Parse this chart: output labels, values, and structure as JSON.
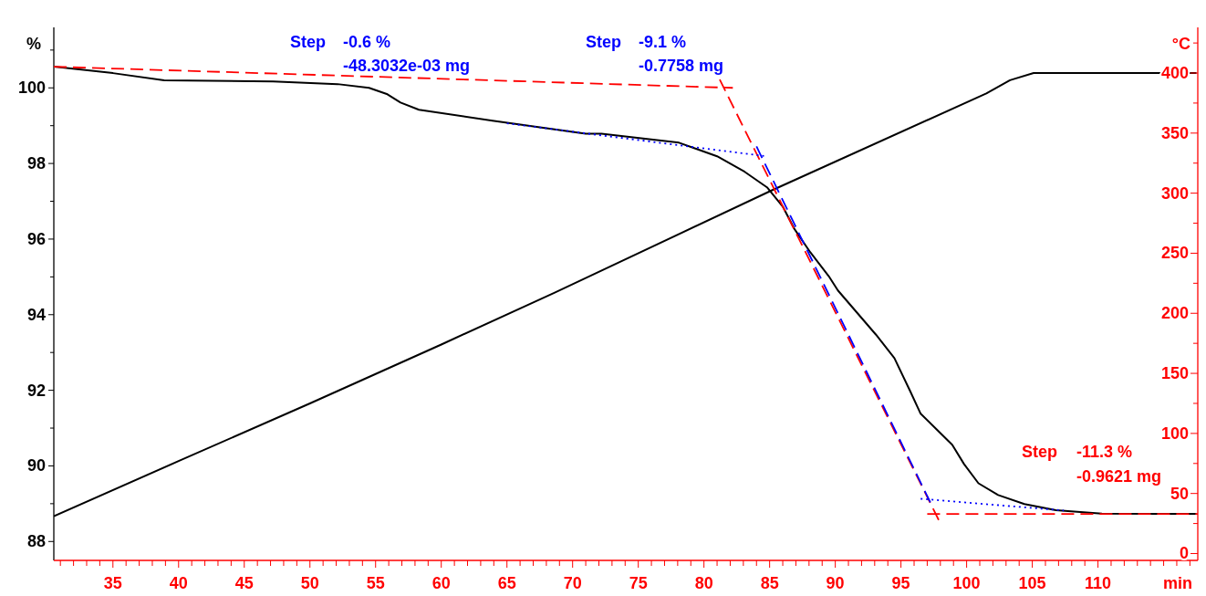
{
  "chart_data": {
    "type": "line",
    "ylabel": "%",
    "y2label": "°C",
    "xlabel": "min",
    "xlim": [
      30.5,
      117.6
    ],
    "ylim": [
      87.5,
      101.6
    ],
    "y2lim": [
      -5.7,
      438
    ],
    "xticks": [
      {
        "value": 31,
        "label": null
      },
      {
        "value": 32,
        "label": null
      },
      {
        "value": 33,
        "label": null
      },
      {
        "value": 34,
        "label": null
      },
      35,
      {
        "value": 36,
        "label": null
      },
      {
        "value": 37,
        "label": null
      },
      {
        "value": 38,
        "label": null
      },
      {
        "value": 39,
        "label": null
      },
      40,
      {
        "value": 41,
        "label": null
      },
      {
        "value": 42,
        "label": null
      },
      {
        "value": 43,
        "label": null
      },
      {
        "value": 44,
        "label": null
      },
      45,
      {
        "value": 46,
        "label": null
      },
      {
        "value": 47,
        "label": null
      },
      {
        "value": 48,
        "label": null
      },
      {
        "value": 49,
        "label": null
      },
      50,
      {
        "value": 51,
        "label": null
      },
      {
        "value": 52,
        "label": null
      },
      {
        "value": 53,
        "label": null
      },
      {
        "value": 54,
        "label": null
      },
      55,
      {
        "value": 56,
        "label": null
      },
      {
        "value": 57,
        "label": null
      },
      {
        "value": 58,
        "label": null
      },
      {
        "value": 59,
        "label": null
      },
      60,
      {
        "value": 61,
        "label": null
      },
      {
        "value": 62,
        "label": null
      },
      {
        "value": 63,
        "label": null
      },
      {
        "value": 64,
        "label": null
      },
      65,
      {
        "value": 66,
        "label": null
      },
      {
        "value": 67,
        "label": null
      },
      {
        "value": 68,
        "label": null
      },
      {
        "value": 69,
        "label": null
      },
      70,
      {
        "value": 71,
        "label": null
      },
      {
        "value": 72,
        "label": null
      },
      {
        "value": 73,
        "label": null
      },
      {
        "value": 74,
        "label": null
      },
      75,
      {
        "value": 76,
        "label": null
      },
      {
        "value": 77,
        "label": null
      },
      {
        "value": 78,
        "label": null
      },
      {
        "value": 79,
        "label": null
      },
      80,
      {
        "value": 81,
        "label": null
      },
      {
        "value": 82,
        "label": null
      },
      {
        "value": 83,
        "label": null
      },
      {
        "value": 84,
        "label": null
      },
      85,
      {
        "value": 86,
        "label": null
      },
      {
        "value": 87,
        "label": null
      },
      {
        "value": 88,
        "label": null
      },
      {
        "value": 89,
        "label": null
      },
      90,
      {
        "value": 91,
        "label": null
      },
      {
        "value": 92,
        "label": null
      },
      {
        "value": 93,
        "label": null
      },
      {
        "value": 94,
        "label": null
      },
      95,
      {
        "value": 96,
        "label": null
      },
      {
        "value": 97,
        "label": null
      },
      {
        "value": 98,
        "label": null
      },
      {
        "value": 99,
        "label": null
      },
      100,
      {
        "value": 101,
        "label": null
      },
      {
        "value": 102,
        "label": null
      },
      {
        "value": 103,
        "label": null
      },
      {
        "value": 104,
        "label": null
      },
      105,
      {
        "value": 106,
        "label": null
      },
      {
        "value": 107,
        "label": null
      },
      {
        "value": 108,
        "label": null
      },
      {
        "value": 109,
        "label": null
      },
      110,
      {
        "value": 111,
        "label": null
      },
      {
        "value": 112,
        "label": null
      },
      {
        "value": 113,
        "label": null
      },
      {
        "value": 114,
        "label": null
      },
      {
        "value": 115,
        "label": null
      },
      {
        "value": 116,
        "label": null
      },
      {
        "value": 117,
        "label": null
      }
    ],
    "yticks": [
      88,
      {
        "value": 89,
        "label": null
      },
      90,
      {
        "value": 91,
        "label": null
      },
      92,
      {
        "value": 93,
        "label": null
      },
      94,
      {
        "value": 95,
        "label": null
      },
      96,
      {
        "value": 97,
        "label": null
      },
      98,
      {
        "value": 99,
        "label": null
      },
      100,
      {
        "value": 101,
        "label": null
      }
    ],
    "y2ticks": [
      0,
      {
        "value": 25,
        "label": null
      },
      50,
      {
        "value": 75,
        "label": null
      },
      100,
      {
        "value": 125,
        "label": null
      },
      150,
      {
        "value": 175,
        "label": null
      },
      200,
      {
        "value": 225,
        "label": null
      },
      250,
      {
        "value": 275,
        "label": null
      },
      300,
      {
        "value": 325,
        "label": null
      },
      350,
      {
        "value": 375,
        "label": null
      },
      400,
      {
        "value": 425,
        "label": null
      }
    ],
    "grid": false,
    "series": [
      {
        "color": "#000000",
        "line_style": "solid",
        "x": [
          30.5,
          35,
          38.9,
          47.2,
          52.1,
          54.5,
          55.9,
          56.9,
          58.3,
          63.9,
          71.0,
          72.2,
          78.1,
          81.0,
          83.1,
          84.8,
          86.0,
          86.9,
          88.1,
          89.5,
          90.2,
          93.1,
          94.5,
          95.7,
          96.5,
          97.7,
          98.9,
          99.8,
          100.9,
          102.4,
          104.4,
          106.8,
          110.3,
          117.5
        ],
        "values": [
          100.56,
          100.39,
          100.2,
          100.17,
          100.1,
          100.0,
          99.83,
          99.61,
          99.42,
          99.13,
          98.79,
          98.79,
          98.55,
          98.19,
          97.78,
          97.37,
          96.86,
          96.26,
          95.65,
          95.02,
          94.64,
          93.47,
          92.85,
          91.98,
          91.38,
          90.97,
          90.56,
          90.05,
          89.54,
          89.23,
          88.99,
          88.83,
          88.74,
          88.73
        ]
      },
      {
        "color": "#000000",
        "line_style": "solid",
        "axis": "y2",
        "x": [
          30.5,
          40,
          50,
          60,
          68.6,
          85.1,
          101.5,
          103.3,
          105.1,
          117.5
        ],
        "values": [
          31,
          77,
          125,
          174,
          217,
          302,
          383,
          394,
          400,
          400
        ]
      },
      {
        "color": "#ff0000",
        "line_style": "dashed",
        "x": [
          30.5,
          82.2
        ],
        "values": [
          100.56,
          100.0
        ]
      },
      {
        "color": "#ff0000",
        "line_style": "dashed",
        "x": [
          81.2,
          98.0
        ],
        "values": [
          100.22,
          88.48
        ]
      },
      {
        "color": "#ff0000",
        "line_style": "dashed",
        "x": [
          97.0,
          117.6
        ],
        "values": [
          88.73,
          88.73
        ]
      },
      {
        "color": "#0000ff",
        "line_style": "dotted",
        "x": [
          65,
          84.8
        ],
        "values": [
          99.06,
          98.19
        ]
      },
      {
        "color": "#0000ff",
        "line_style": "dashed",
        "x": [
          84.0,
          97.3
        ],
        "values": [
          98.45,
          88.99
        ]
      },
      {
        "color": "#0000ff",
        "line_style": "dotted",
        "x": [
          96.5,
          107.4
        ],
        "values": [
          89.13,
          88.82
        ]
      }
    ],
    "annotations": [
      "Step",
      "-0.6 %",
      "-48.3032e-03 mg",
      "Step",
      "-9.1 %",
      "-0.7758 mg",
      "Step",
      "-11.3 %",
      "-0.9621 mg"
    ]
  }
}
